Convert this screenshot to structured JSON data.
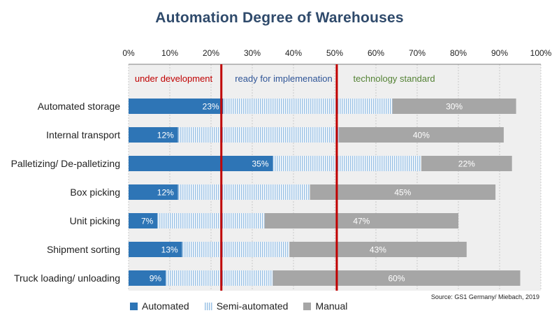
{
  "chart_data": {
    "type": "bar",
    "orientation": "horizontal",
    "stacked": true,
    "title": "Automation Degree of Warehouses",
    "categories": [
      "Automated storage",
      "Internal transport",
      "Palletizing/ De-palletizing",
      "Box picking",
      "Unit picking",
      "Shipment sorting",
      "Truck loading/ unloading"
    ],
    "series": [
      {
        "name": "Automated",
        "values": [
          23,
          12,
          35,
          12,
          7,
          13,
          9
        ],
        "labels": [
          "23%",
          "12%",
          "35%",
          "12%",
          "7%",
          "13%",
          "9%"
        ]
      },
      {
        "name": "Semi-automated",
        "values": [
          41,
          39,
          36,
          32,
          26,
          26,
          26
        ],
        "labels": [
          "",
          "",
          "",
          "",
          "",
          "",
          ""
        ]
      },
      {
        "name": "Manual",
        "values": [
          30,
          40,
          22,
          45,
          47,
          43,
          60
        ],
        "labels": [
          "30%",
          "40%",
          "22%",
          "45%",
          "47%",
          "43%",
          "60%"
        ]
      }
    ],
    "xlim": [
      0,
      100
    ],
    "xticks": [
      "0%",
      "10%",
      "20%",
      "30%",
      "40%",
      "50%",
      "60%",
      "70%",
      "80%",
      "90%",
      "100%"
    ],
    "grid": true,
    "legend_position": "bottom-left",
    "reference_lines": [
      {
        "x": 22.5,
        "color": "#c00000"
      },
      {
        "x": 50.5,
        "color": "#c00000"
      }
    ],
    "zones": [
      {
        "label": "under development",
        "color": "#c00000"
      },
      {
        "label": "ready for implemenation",
        "color": "#2f5597"
      },
      {
        "label": "technology standard",
        "color": "#548235"
      }
    ],
    "colors": {
      "automated": "#2e75b6",
      "semi": "#9dc3e6",
      "manual": "#a6a6a6",
      "plot_bg": "#efefef"
    }
  },
  "source": "Source: GS1 Germany/ Miebach, 2019",
  "legend": {
    "automated": "Automated",
    "semi": "Semi-automated",
    "manual": "Manual"
  }
}
